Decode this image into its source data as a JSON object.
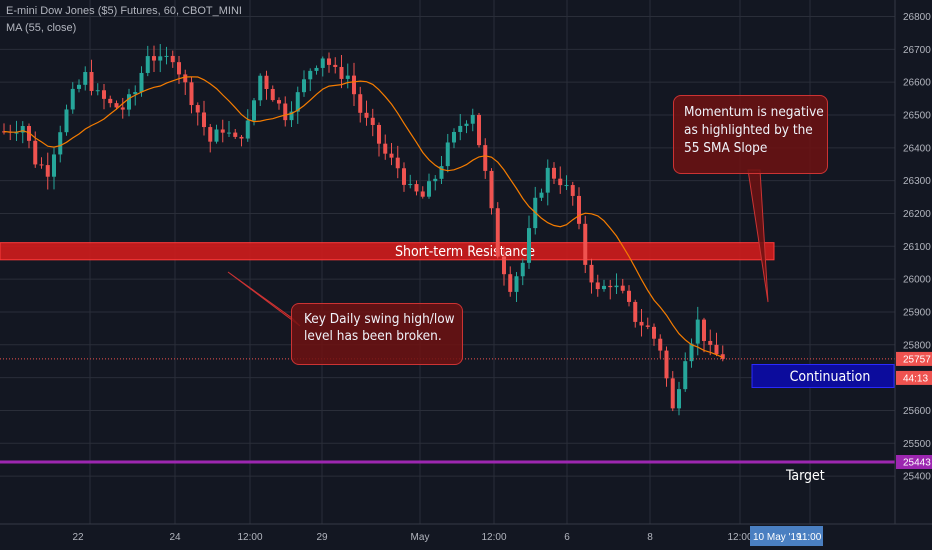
{
  "header": {
    "symbol_line": "E-mini Dow Jones ($5) Futures, 60, CBOT_MINI",
    "indicator_line": "MA (55, close)"
  },
  "chart_data": {
    "type": "candlestick",
    "title": "E-mini Dow Jones ($5) Futures, 60, CBOT_MINI",
    "interval": "60",
    "indicator": "MA (55, close)",
    "ylim": [
      25350,
      26850
    ],
    "y_ticks": [
      25400,
      25500,
      25600,
      25700,
      25800,
      25900,
      26000,
      26100,
      26200,
      26300,
      26400,
      26500,
      26600,
      26700,
      26800
    ],
    "x_ticks": [
      "22",
      "24",
      "12:00",
      "29",
      "May",
      "12:00",
      "6",
      "8",
      "12:00"
    ],
    "grid": true,
    "colors": {
      "background": "#131722",
      "up": "#26a69a",
      "down": "#ef5350",
      "ma": "#f57c00",
      "resistance_zone": "#d01c1c",
      "continuation_box": "#0c0c9c",
      "target_line": "#9c27b0"
    },
    "price_path": [
      [
        0,
        26450
      ],
      [
        3,
        26470
      ],
      [
        5,
        26360
      ],
      [
        7,
        26330
      ],
      [
        9,
        26460
      ],
      [
        11,
        26560
      ],
      [
        13,
        26620
      ],
      [
        15,
        26560
      ],
      [
        17,
        26530
      ],
      [
        19,
        26520
      ],
      [
        21,
        26570
      ],
      [
        23,
        26690
      ],
      [
        25,
        26660
      ],
      [
        27,
        26680
      ],
      [
        29,
        26590
      ],
      [
        31,
        26510
      ],
      [
        33,
        26420
      ],
      [
        35,
        26460
      ],
      [
        37,
        26420
      ],
      [
        39,
        26470
      ],
      [
        41,
        26620
      ],
      [
        43,
        26560
      ],
      [
        45,
        26500
      ],
      [
        47,
        26560
      ],
      [
        49,
        26640
      ],
      [
        51,
        26680
      ],
      [
        53,
        26630
      ],
      [
        55,
        26620
      ],
      [
        57,
        26510
      ],
      [
        59,
        26450
      ],
      [
        61,
        26380
      ],
      [
        63,
        26340
      ],
      [
        65,
        26270
      ],
      [
        67,
        26250
      ],
      [
        69,
        26310
      ],
      [
        71,
        26400
      ],
      [
        73,
        26470
      ],
      [
        75,
        26510
      ],
      [
        77,
        26320
      ],
      [
        79,
        26080
      ],
      [
        81,
        25980
      ],
      [
        83,
        26050
      ],
      [
        85,
        26230
      ],
      [
        87,
        26330
      ],
      [
        89,
        26300
      ],
      [
        91,
        26250
      ],
      [
        93,
        26050
      ],
      [
        95,
        25960
      ],
      [
        97,
        25990
      ],
      [
        99,
        25950
      ],
      [
        101,
        25880
      ],
      [
        103,
        25850
      ],
      [
        105,
        25790
      ],
      [
        107,
        25600
      ],
      [
        109,
        25770
      ],
      [
        111,
        25870
      ],
      [
        113,
        25780
      ],
      [
        115,
        25757
      ]
    ],
    "last_price": 25757,
    "ma_period": 55,
    "price_labels": {
      "last": "25757",
      "countdown": "44:13",
      "target": "25443"
    },
    "bottom_date_label": "10 May '19",
    "bottom_time_label": "11:00",
    "levels": {
      "resistance": {
        "label": "Short-term Resistance",
        "from": 26065,
        "to": 26105
      },
      "target": {
        "label": "Target",
        "value": 25443
      },
      "continuation": {
        "label": "Continuation",
        "from": 25670,
        "to": 25740
      }
    },
    "annotations": [
      {
        "id": "key-daily",
        "lines": [
          "Key Daily swing high/low",
          "level has been broken."
        ]
      },
      {
        "id": "momentum",
        "lines": [
          "Momentum is negative",
          "as highlighted by the",
          "55 SMA Slope"
        ]
      }
    ]
  }
}
